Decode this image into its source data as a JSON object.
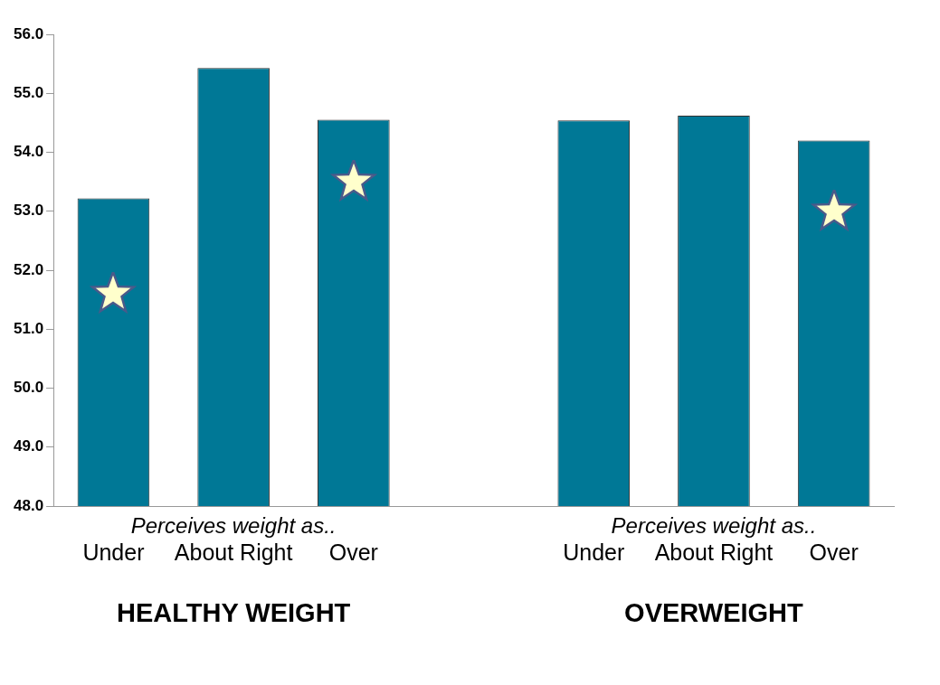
{
  "chart_data": {
    "type": "bar",
    "categories": [
      "Under",
      "About Right",
      "Over",
      null,
      "Under",
      "About Right",
      "Over"
    ],
    "values": [
      53.22,
      55.43,
      54.55,
      null,
      54.54,
      54.62,
      54.2
    ],
    "color": "#007896",
    "ylim": [
      48,
      56
    ],
    "yticks": [
      {
        "value": 48,
        "label": "48.0"
      },
      {
        "value": 49,
        "label": "49.0"
      },
      {
        "value": 50,
        "label": "50.0"
      },
      {
        "value": 51,
        "label": "51.0"
      },
      {
        "value": 52,
        "label": "52.0"
      },
      {
        "value": 53,
        "label": "53.0"
      },
      {
        "value": 54,
        "label": "54.0"
      },
      {
        "value": 55,
        "label": "55.0"
      },
      {
        "value": 56,
        "label": "56.0"
      }
    ],
    "annotations": [
      "Perceives weight as..",
      "Perceives weight as..",
      "HEALTHY WEIGHT",
      "OVERWEIGHT"
    ]
  }
}
